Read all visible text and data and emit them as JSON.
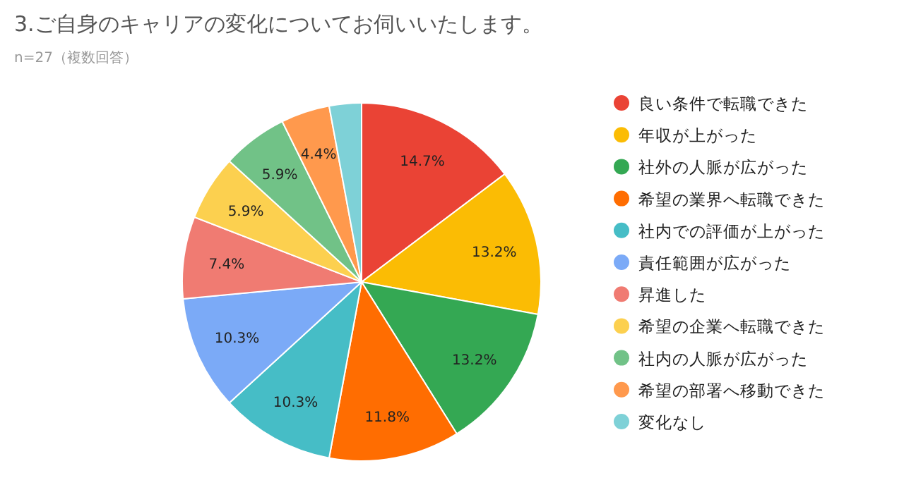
{
  "chart_data": {
    "type": "pie",
    "title": "3.ご自身のキャリアの変化についてお伺いいたします。",
    "subtitle": "n=27（複数回答）",
    "categories": [
      "良い条件で転職できた",
      "年収が上がった",
      "社外の人脈が広がった",
      "希望の業界へ転職できた",
      "社内での評価が上がった",
      "責任範囲が広がった",
      "昇進した",
      "希望の企業へ転職できた",
      "社内の人脈が広がった",
      "希望の部署へ移動できた",
      "変化なし"
    ],
    "values": [
      14.7,
      13.2,
      13.2,
      11.8,
      10.3,
      10.3,
      7.4,
      5.9,
      5.9,
      4.4,
      2.9
    ],
    "colors": [
      "#ea4335",
      "#fbbc04",
      "#34a853",
      "#ff6d01",
      "#46bdc6",
      "#7baaf7",
      "#f07b72",
      "#fcd04f",
      "#71c287",
      "#ff994d",
      "#7ed1d7"
    ],
    "value_labels": [
      "14.7%",
      "13.2%",
      "13.2%",
      "11.8%",
      "10.3%",
      "10.3%",
      "7.4%",
      "5.9%",
      "5.9%",
      "4.4%",
      null
    ],
    "legend": "right"
  }
}
